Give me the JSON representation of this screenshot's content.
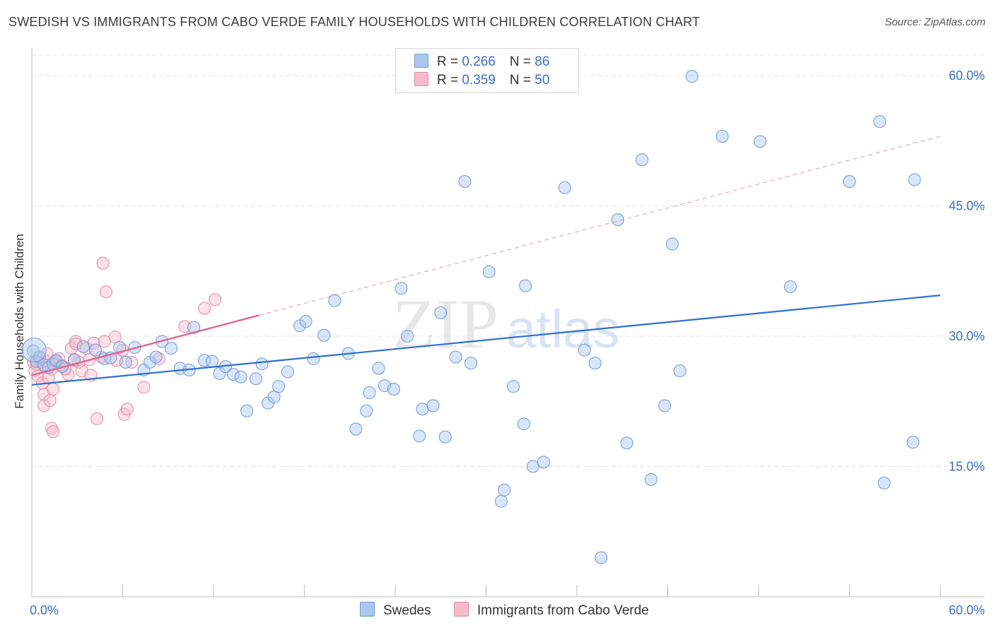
{
  "title": "SWEDISH VS IMMIGRANTS FROM CABO VERDE FAMILY HOUSEHOLDS WITH CHILDREN CORRELATION CHART",
  "source": "Source: ZipAtlas.com",
  "watermark": {
    "zip": "ZIP",
    "atlas": "atlas"
  },
  "legend": {
    "rows": [
      {
        "r_label": "R = ",
        "r_value": "0.266",
        "n_label": "N = ",
        "n_value": "86"
      },
      {
        "r_label": "R = ",
        "r_value": "0.359",
        "n_label": "N = ",
        "n_value": "50"
      }
    ]
  },
  "bottom_legend": [
    "Swedes",
    "Immigrants from Cabo Verde"
  ],
  "colors": {
    "swedes_fill": "#aac8ef",
    "swedes_stroke": "#6f9ad8",
    "swedes_line": "#2f6fd0",
    "cabo_fill": "#f6bccb",
    "cabo_stroke": "#e68aa5",
    "cabo_line": "#e06890",
    "tick_label": "#3a6fd0",
    "grid": "#e4e4e4"
  },
  "chart_data": {
    "type": "scatter",
    "title": "SWEDISH VS IMMIGRANTS FROM CABO VERDE FAMILY HOUSEHOLDS WITH CHILDREN CORRELATION CHART",
    "xlabel": "",
    "ylabel": "Family Households with Children",
    "xlim": [
      0,
      60
    ],
    "ylim": [
      0,
      63
    ],
    "x_tick_labels": [
      "0.0%",
      "60.0%"
    ],
    "y_ticks": [
      15,
      30,
      45,
      60
    ],
    "y_tick_labels": [
      "15.0%",
      "30.0%",
      "45.0%",
      "60.0%"
    ],
    "grid": true,
    "legend_position": "top-center",
    "series": [
      {
        "name": "Swedes",
        "r": 0.266,
        "n": 86,
        "trend": {
          "x0": 0,
          "y0": 24.4,
          "x1": 60,
          "y1": 34.7
        },
        "points": [
          [
            0.1,
            28.3
          ],
          [
            0.3,
            27.1
          ],
          [
            0.5,
            27.6
          ],
          [
            0.8,
            26.7
          ],
          [
            1.1,
            26.4
          ],
          [
            1.4,
            26.8
          ],
          [
            1.6,
            27.2
          ],
          [
            2.0,
            26.5
          ],
          [
            2.8,
            27.3
          ],
          [
            3.4,
            28.8
          ],
          [
            4.2,
            28.4
          ],
          [
            4.8,
            27.4
          ],
          [
            5.2,
            27.5
          ],
          [
            5.8,
            28.7
          ],
          [
            6.2,
            27.0
          ],
          [
            6.8,
            28.7
          ],
          [
            7.4,
            26.1
          ],
          [
            7.8,
            27.0
          ],
          [
            8.2,
            27.6
          ],
          [
            8.6,
            29.4
          ],
          [
            9.2,
            28.6
          ],
          [
            9.8,
            26.3
          ],
          [
            10.4,
            26.1
          ],
          [
            10.7,
            31.0
          ],
          [
            11.4,
            27.2
          ],
          [
            11.9,
            27.1
          ],
          [
            12.4,
            25.7
          ],
          [
            12.8,
            26.5
          ],
          [
            13.3,
            25.6
          ],
          [
            13.8,
            25.3
          ],
          [
            14.2,
            21.4
          ],
          [
            14.8,
            25.1
          ],
          [
            15.2,
            26.8
          ],
          [
            15.6,
            22.3
          ],
          [
            16.0,
            23.0
          ],
          [
            16.3,
            24.2
          ],
          [
            16.9,
            25.9
          ],
          [
            17.7,
            31.2
          ],
          [
            18.1,
            31.7
          ],
          [
            18.6,
            27.4
          ],
          [
            19.3,
            30.1
          ],
          [
            20.0,
            34.1
          ],
          [
            20.9,
            28.0
          ],
          [
            21.4,
            19.3
          ],
          [
            22.1,
            21.4
          ],
          [
            22.3,
            23.5
          ],
          [
            22.9,
            26.3
          ],
          [
            23.3,
            24.3
          ],
          [
            23.9,
            23.9
          ],
          [
            24.4,
            35.5
          ],
          [
            24.8,
            30.0
          ],
          [
            25.6,
            18.5
          ],
          [
            25.8,
            21.6
          ],
          [
            26.5,
            22.0
          ],
          [
            27.0,
            32.7
          ],
          [
            27.3,
            18.4
          ],
          [
            28.0,
            27.6
          ],
          [
            28.6,
            47.8
          ],
          [
            29.0,
            26.9
          ],
          [
            30.2,
            37.4
          ],
          [
            31.0,
            11.0
          ],
          [
            31.2,
            12.3
          ],
          [
            31.8,
            24.2
          ],
          [
            32.6,
            35.8
          ],
          [
            32.5,
            19.9
          ],
          [
            33.1,
            15.0
          ],
          [
            33.8,
            15.5
          ],
          [
            35.2,
            47.1
          ],
          [
            36.5,
            28.4
          ],
          [
            37.2,
            26.9
          ],
          [
            38.7,
            43.4
          ],
          [
            39.3,
            17.7
          ],
          [
            40.3,
            50.3
          ],
          [
            40.9,
            13.5
          ],
          [
            41.8,
            22.0
          ],
          [
            42.3,
            40.6
          ],
          [
            42.8,
            26.0
          ],
          [
            43.6,
            59.9
          ],
          [
            45.6,
            53.0
          ],
          [
            48.1,
            52.4
          ],
          [
            37.6,
            4.5
          ],
          [
            50.1,
            35.7
          ],
          [
            54.0,
            47.8
          ],
          [
            56.0,
            54.7
          ],
          [
            56.3,
            13.1
          ],
          [
            58.2,
            17.8
          ],
          [
            58.3,
            48.0
          ]
        ]
      },
      {
        "name": "Immigrants from Cabo Verde",
        "r": 0.359,
        "n": 50,
        "trend": {
          "x0": 0,
          "y0": 25.5,
          "x1": 15,
          "y1": 32.4
        },
        "trend_ext": {
          "x0": 15,
          "y0": 32.4,
          "x1": 60,
          "y1": 53.0
        },
        "points": [
          [
            0.1,
            27.0
          ],
          [
            0.2,
            26.0
          ],
          [
            0.3,
            26.8
          ],
          [
            0.4,
            25.4
          ],
          [
            0.5,
            27.4
          ],
          [
            0.6,
            27.0
          ],
          [
            0.7,
            24.6
          ],
          [
            0.8,
            23.3
          ],
          [
            0.8,
            22.0
          ],
          [
            0.9,
            27.2
          ],
          [
            1.0,
            28.0
          ],
          [
            1.1,
            25.2
          ],
          [
            1.2,
            22.6
          ],
          [
            1.3,
            26.2
          ],
          [
            1.4,
            23.9
          ],
          [
            1.5,
            27.0
          ],
          [
            1.6,
            27.1
          ],
          [
            1.3,
            19.4
          ],
          [
            1.4,
            19.0
          ],
          [
            1.8,
            27.4
          ],
          [
            2.0,
            26.6
          ],
          [
            2.2,
            26.3
          ],
          [
            2.4,
            25.6
          ],
          [
            2.6,
            28.6
          ],
          [
            2.8,
            27.2
          ],
          [
            2.9,
            29.4
          ],
          [
            3.1,
            27.0
          ],
          [
            3.3,
            26.0
          ],
          [
            3.6,
            28.6
          ],
          [
            3.9,
            25.5
          ],
          [
            4.1,
            29.2
          ],
          [
            4.3,
            20.5
          ],
          [
            4.6,
            27.6
          ],
          [
            4.8,
            29.4
          ],
          [
            3.8,
            27.3
          ],
          [
            2.9,
            29.1
          ],
          [
            4.7,
            38.4
          ],
          [
            4.9,
            35.1
          ],
          [
            5.6,
            27.2
          ],
          [
            5.5,
            29.9
          ],
          [
            6.0,
            28.4
          ],
          [
            6.1,
            21.0
          ],
          [
            6.3,
            21.6
          ],
          [
            6.6,
            27.0
          ],
          [
            7.4,
            24.1
          ],
          [
            8.4,
            27.4
          ],
          [
            10.1,
            31.1
          ],
          [
            11.4,
            33.2
          ],
          [
            12.1,
            34.2
          ],
          [
            2.2,
            26.2
          ]
        ]
      }
    ]
  }
}
